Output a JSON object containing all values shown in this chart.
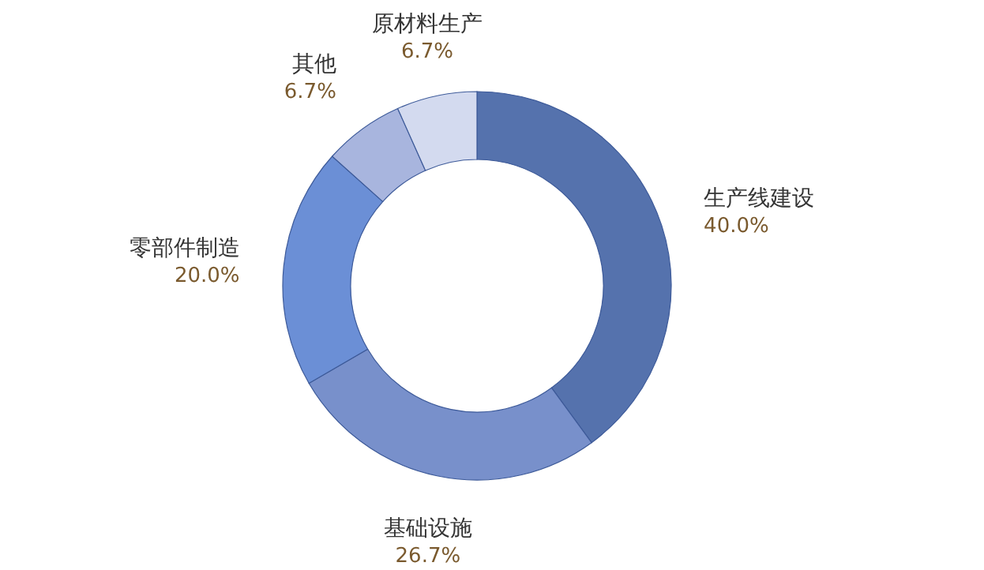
{
  "chart_data": {
    "type": "donut",
    "categories": [
      "生产线建设",
      "基础设施",
      "零部件制造",
      "其他",
      "原材料生产"
    ],
    "values": [
      40.0,
      26.7,
      20.0,
      6.7,
      6.7
    ],
    "colors": [
      "#5572ad",
      "#7890cb",
      "#6b8fd6",
      "#a8b5de",
      "#d3daef"
    ],
    "value_labels": [
      "40.0%",
      "26.7%",
      "20.0%",
      "6.7%",
      "6.7%"
    ]
  }
}
